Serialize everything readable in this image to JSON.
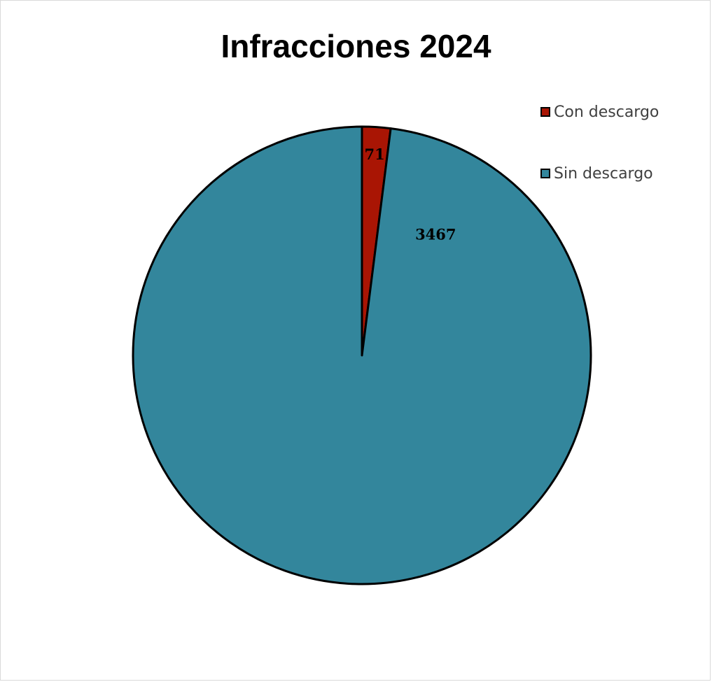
{
  "chart_data": {
    "type": "pie",
    "title": "Infracciones 2024",
    "legend_position": "top-right",
    "categories": [
      "Con descargo",
      "Sin descargo"
    ],
    "values": [
      71,
      3467
    ],
    "data_labels": [
      "71",
      "3467"
    ],
    "colors": [
      "#a91504",
      "#33869c"
    ],
    "start_angle": "top",
    "direction": "clockwise"
  }
}
